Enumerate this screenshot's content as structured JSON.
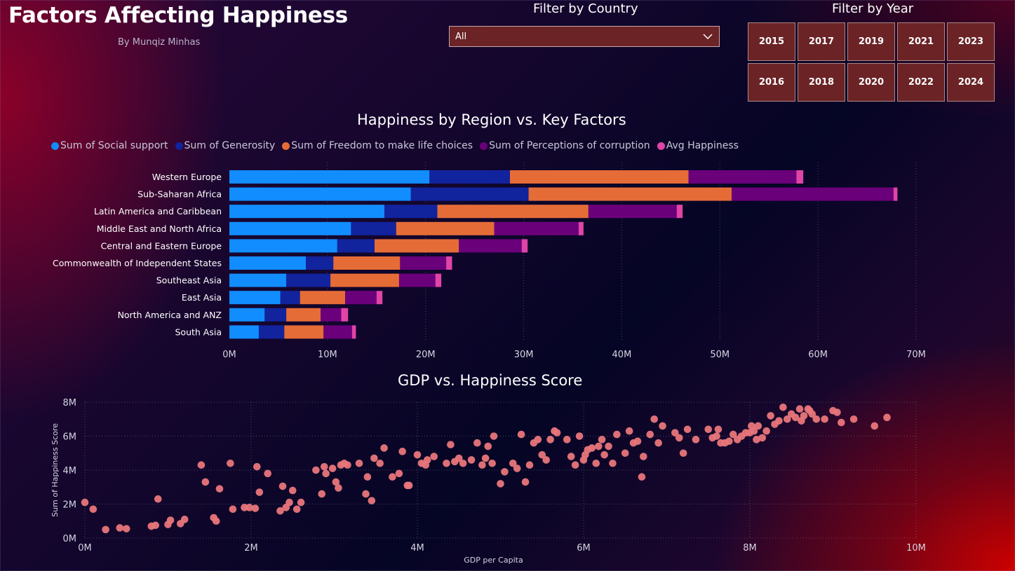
{
  "header": {
    "title": "Factors Affecting Happiness",
    "subtitle": "By Munqiz Minhas"
  },
  "country_filter": {
    "label": "Filter by Country",
    "selected": "All"
  },
  "year_filter": {
    "label": "Filter by Year",
    "years": [
      "2015",
      "2017",
      "2019",
      "2021",
      "2023",
      "2016",
      "2018",
      "2020",
      "2022",
      "2024"
    ]
  },
  "colors": {
    "social_support": "#118dff",
    "generosity": "#12239e",
    "freedom": "#e66c37",
    "corruption": "#6b007b",
    "avg_happiness": "#e044a7",
    "scatter_point": "#e8767a"
  },
  "chart_data": [
    {
      "type": "bar",
      "title": "Happiness by Region vs. Key Factors",
      "orientation": "horizontal",
      "stacked": true,
      "categories": [
        "Western Europe",
        "Sub-Saharan Africa",
        "Latin America and Caribbean",
        "Middle East and North Africa",
        "Central and Eastern Europe",
        "Commonwealth of Independent States",
        "Southeast Asia",
        "East Asia",
        "North America and ANZ",
        "South Asia"
      ],
      "series": [
        {
          "name": "Sum of Social support",
          "values": [
            20.4,
            18.5,
            15.8,
            12.4,
            11.0,
            7.8,
            5.8,
            5.2,
            3.6,
            3.0
          ]
        },
        {
          "name": "Sum of Generosity",
          "values": [
            8.2,
            12.0,
            5.4,
            4.6,
            3.8,
            2.8,
            4.5,
            2.0,
            2.2,
            2.6
          ]
        },
        {
          "name": "Sum of Freedom to make life choices",
          "values": [
            18.2,
            20.7,
            15.4,
            10.0,
            8.6,
            6.8,
            7.0,
            4.6,
            3.5,
            4.0
          ]
        },
        {
          "name": "Sum of Perceptions of corruption",
          "values": [
            11.0,
            16.5,
            9.0,
            8.6,
            6.4,
            4.7,
            3.7,
            3.2,
            2.1,
            2.9
          ]
        },
        {
          "name": "Avg Happiness",
          "values": [
            0.7,
            0.4,
            0.6,
            0.5,
            0.6,
            0.6,
            0.6,
            0.6,
            0.7,
            0.4
          ]
        }
      ],
      "xticks": [
        "0M",
        "10M",
        "20M",
        "30M",
        "40M",
        "50M",
        "60M",
        "70M"
      ],
      "xlim": [
        0,
        70
      ],
      "xunit": "M",
      "grid": true,
      "legend": "top"
    },
    {
      "type": "scatter",
      "title": "GDP vs. Happiness Score",
      "xlabel": "GDP per Capita",
      "ylabel": "Sum of Happiness Score",
      "xlim": [
        0,
        10
      ],
      "ylim": [
        0,
        8
      ],
      "xticks": [
        "0M",
        "2M",
        "4M",
        "6M",
        "8M",
        "10M"
      ],
      "yticks": [
        "0M",
        "2M",
        "4M",
        "6M",
        "8M"
      ],
      "grid": true,
      "points": [
        [
          0.0,
          2.1
        ],
        [
          0.1,
          1.7
        ],
        [
          0.25,
          0.5
        ],
        [
          0.42,
          0.6
        ],
        [
          0.5,
          0.55
        ],
        [
          0.8,
          0.7
        ],
        [
          0.85,
          0.75
        ],
        [
          0.88,
          2.3
        ],
        [
          1.0,
          0.8
        ],
        [
          1.03,
          1.05
        ],
        [
          1.15,
          0.85
        ],
        [
          1.2,
          1.1
        ],
        [
          1.4,
          4.3
        ],
        [
          1.45,
          3.3
        ],
        [
          1.55,
          1.2
        ],
        [
          1.58,
          1.0
        ],
        [
          1.62,
          2.9
        ],
        [
          1.75,
          4.4
        ],
        [
          1.78,
          1.7
        ],
        [
          1.92,
          1.8
        ],
        [
          1.98,
          1.8
        ],
        [
          2.05,
          1.75
        ],
        [
          2.07,
          4.2
        ],
        [
          2.1,
          2.7
        ],
        [
          2.2,
          3.8
        ],
        [
          2.35,
          1.6
        ],
        [
          2.38,
          3.05
        ],
        [
          2.42,
          1.8
        ],
        [
          2.46,
          2.1
        ],
        [
          2.5,
          2.8
        ],
        [
          2.55,
          1.7
        ],
        [
          2.6,
          2.1
        ],
        [
          2.78,
          4.0
        ],
        [
          2.85,
          2.6
        ],
        [
          2.88,
          4.2
        ],
        [
          2.9,
          3.8
        ],
        [
          2.98,
          4.1
        ],
        [
          3.02,
          3.3
        ],
        [
          3.05,
          2.95
        ],
        [
          3.08,
          4.3
        ],
        [
          3.12,
          4.4
        ],
        [
          3.16,
          4.3
        ],
        [
          3.3,
          4.4
        ],
        [
          3.38,
          2.6
        ],
        [
          3.4,
          3.6
        ],
        [
          3.45,
          2.2
        ],
        [
          3.48,
          4.7
        ],
        [
          3.55,
          4.4
        ],
        [
          3.6,
          5.3
        ],
        [
          3.7,
          3.6
        ],
        [
          3.78,
          3.8
        ],
        [
          3.82,
          5.1
        ],
        [
          3.88,
          3.1
        ],
        [
          3.9,
          3.1
        ],
        [
          4.0,
          4.9
        ],
        [
          4.05,
          4.4
        ],
        [
          4.1,
          4.3
        ],
        [
          4.12,
          4.6
        ],
        [
          4.2,
          4.8
        ],
        [
          4.35,
          4.4
        ],
        [
          4.4,
          5.5
        ],
        [
          4.45,
          4.5
        ],
        [
          4.5,
          4.7
        ],
        [
          4.55,
          4.4
        ],
        [
          4.65,
          4.6
        ],
        [
          4.72,
          5.6
        ],
        [
          4.78,
          4.3
        ],
        [
          4.82,
          4.7
        ],
        [
          4.85,
          5.4
        ],
        [
          4.9,
          4.4
        ],
        [
          4.92,
          6.0
        ],
        [
          5.0,
          3.2
        ],
        [
          5.05,
          3.9
        ],
        [
          5.15,
          4.4
        ],
        [
          5.2,
          4.1
        ],
        [
          5.25,
          6.1
        ],
        [
          5.3,
          3.3
        ],
        [
          5.35,
          4.3
        ],
        [
          5.4,
          5.6
        ],
        [
          5.45,
          5.8
        ],
        [
          5.5,
          4.9
        ],
        [
          5.55,
          4.6
        ],
        [
          5.6,
          5.8
        ],
        [
          5.65,
          6.3
        ],
        [
          5.68,
          6.2
        ],
        [
          5.8,
          5.8
        ],
        [
          5.85,
          4.8
        ],
        [
          5.9,
          4.3
        ],
        [
          5.95,
          6.0
        ],
        [
          6.0,
          4.6
        ],
        [
          6.02,
          4.9
        ],
        [
          6.05,
          5.2
        ],
        [
          6.1,
          5.3
        ],
        [
          6.15,
          4.4
        ],
        [
          6.18,
          5.4
        ],
        [
          6.22,
          5.8
        ],
        [
          6.25,
          4.9
        ],
        [
          6.3,
          5.4
        ],
        [
          6.35,
          4.4
        ],
        [
          6.4,
          6.1
        ],
        [
          6.5,
          5.0
        ],
        [
          6.55,
          6.3
        ],
        [
          6.6,
          5.6
        ],
        [
          6.65,
          5.7
        ],
        [
          6.7,
          3.6
        ],
        [
          6.72,
          4.8
        ],
        [
          6.8,
          6.1
        ],
        [
          6.85,
          7.0
        ],
        [
          6.9,
          5.6
        ],
        [
          6.95,
          6.6
        ],
        [
          7.1,
          6.2
        ],
        [
          7.15,
          5.9
        ],
        [
          7.2,
          5.0
        ],
        [
          7.25,
          6.4
        ],
        [
          7.35,
          5.8
        ],
        [
          7.5,
          6.4
        ],
        [
          7.55,
          5.9
        ],
        [
          7.6,
          6.0
        ],
        [
          7.62,
          6.4
        ],
        [
          7.65,
          5.6
        ],
        [
          7.7,
          5.6
        ],
        [
          7.75,
          5.7
        ],
        [
          7.8,
          6.1
        ],
        [
          7.85,
          5.8
        ],
        [
          7.9,
          6.0
        ],
        [
          7.95,
          6.2
        ],
        [
          8.0,
          6.2
        ],
        [
          8.02,
          6.6
        ],
        [
          8.05,
          6.3
        ],
        [
          8.08,
          5.8
        ],
        [
          8.1,
          6.6
        ],
        [
          8.15,
          5.9
        ],
        [
          8.2,
          6.3
        ],
        [
          8.25,
          7.2
        ],
        [
          8.3,
          6.7
        ],
        [
          8.35,
          6.9
        ],
        [
          8.4,
          7.7
        ],
        [
          8.45,
          7.0
        ],
        [
          8.5,
          7.3
        ],
        [
          8.55,
          7.1
        ],
        [
          8.6,
          7.6
        ],
        [
          8.62,
          6.9
        ],
        [
          8.65,
          7.2
        ],
        [
          8.7,
          7.6
        ],
        [
          8.72,
          7.5
        ],
        [
          8.75,
          7.3
        ],
        [
          8.8,
          7.0
        ],
        [
          8.9,
          7.0
        ],
        [
          9.0,
          7.5
        ],
        [
          9.05,
          7.4
        ],
        [
          9.1,
          6.8
        ],
        [
          9.25,
          7.0
        ],
        [
          9.5,
          6.6
        ],
        [
          9.65,
          7.1
        ]
      ]
    }
  ]
}
